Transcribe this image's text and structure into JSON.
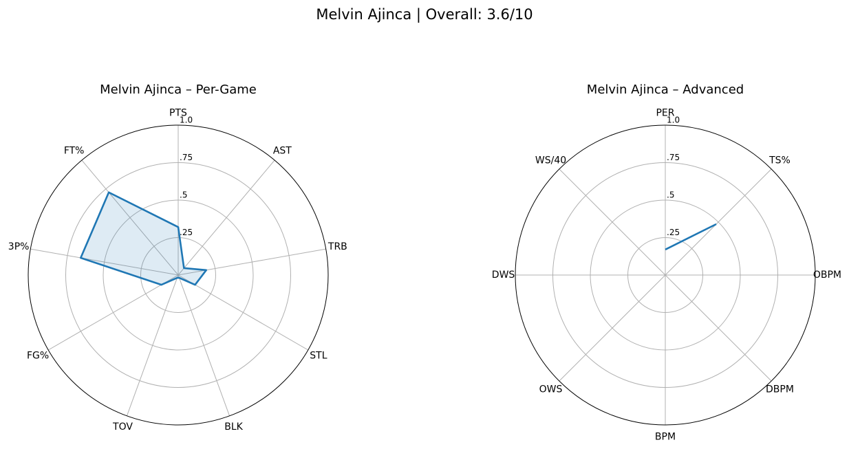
{
  "title": "Melvin Ajinca | Overall: 3.6/10",
  "chart_data": [
    {
      "type": "radar",
      "title": "Melvin Ajinca – Per-Game",
      "categories": [
        "PTS",
        "AST",
        "TRB",
        "STL",
        "BLK",
        "TOV",
        "FG%",
        "3P%",
        "FT%"
      ],
      "values": [
        0.32,
        0.06,
        0.19,
        0.13,
        0.02,
        0.02,
        0.13,
        0.66,
        0.72
      ],
      "color": "#1f77b4",
      "fill": true,
      "ylim": [
        0,
        1
      ],
      "yticks": [
        {
          "value": 0.25,
          "label": ".25"
        },
        {
          "value": 0.5,
          "label": ".5"
        },
        {
          "value": 0.75,
          "label": ".75"
        },
        {
          "value": 1.0,
          "label": "1.0"
        }
      ]
    },
    {
      "type": "radar",
      "title": "Melvin Ajinca – Advanced",
      "categories": [
        "PER",
        "TS%",
        "OBPM",
        "DBPM",
        "BPM",
        "OWS",
        "DWS",
        "WS/40"
      ],
      "values": [
        0.17,
        0.48,
        null,
        null,
        null,
        null,
        null,
        null
      ],
      "color": "#1f77b4",
      "fill": true,
      "ylim": [
        0,
        1
      ],
      "yticks": [
        {
          "value": 0.25,
          "label": ".25"
        },
        {
          "value": 0.5,
          "label": ".5"
        },
        {
          "value": 0.75,
          "label": ".75"
        },
        {
          "value": 1.0,
          "label": "1.0"
        }
      ]
    }
  ]
}
